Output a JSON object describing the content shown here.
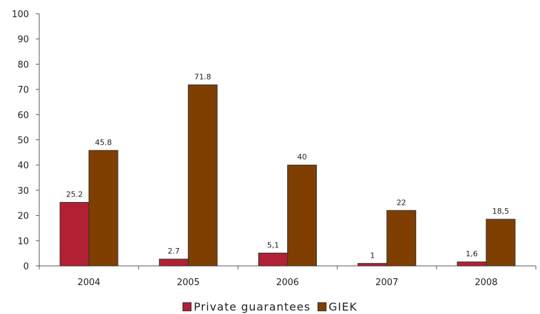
{
  "chart_data": {
    "type": "bar",
    "title": "",
    "xlabel": "",
    "ylabel": "",
    "categories": [
      "2004",
      "2005",
      "2006",
      "2007",
      "2008"
    ],
    "series": [
      {
        "name": "Private guarantees",
        "color": "#b22034",
        "values": [
          25.2,
          2.7,
          5.1,
          1,
          1.6
        ],
        "labels": [
          "25.2",
          "2.7",
          "5,1",
          "1",
          "1,6"
        ]
      },
      {
        "name": "GIEK",
        "color": "#7f3f00",
        "values": [
          45.8,
          71.8,
          40,
          22,
          18.5
        ],
        "labels": [
          "45.8",
          "71.8",
          "40",
          "22",
          "18,5"
        ]
      }
    ],
    "ylim": [
      0,
      100
    ],
    "yticks": [
      "0",
      "10",
      "20",
      "30",
      "40",
      "50",
      "60",
      "70",
      "80",
      "90",
      "100"
    ],
    "grid": false,
    "legend_position": "bottom"
  }
}
